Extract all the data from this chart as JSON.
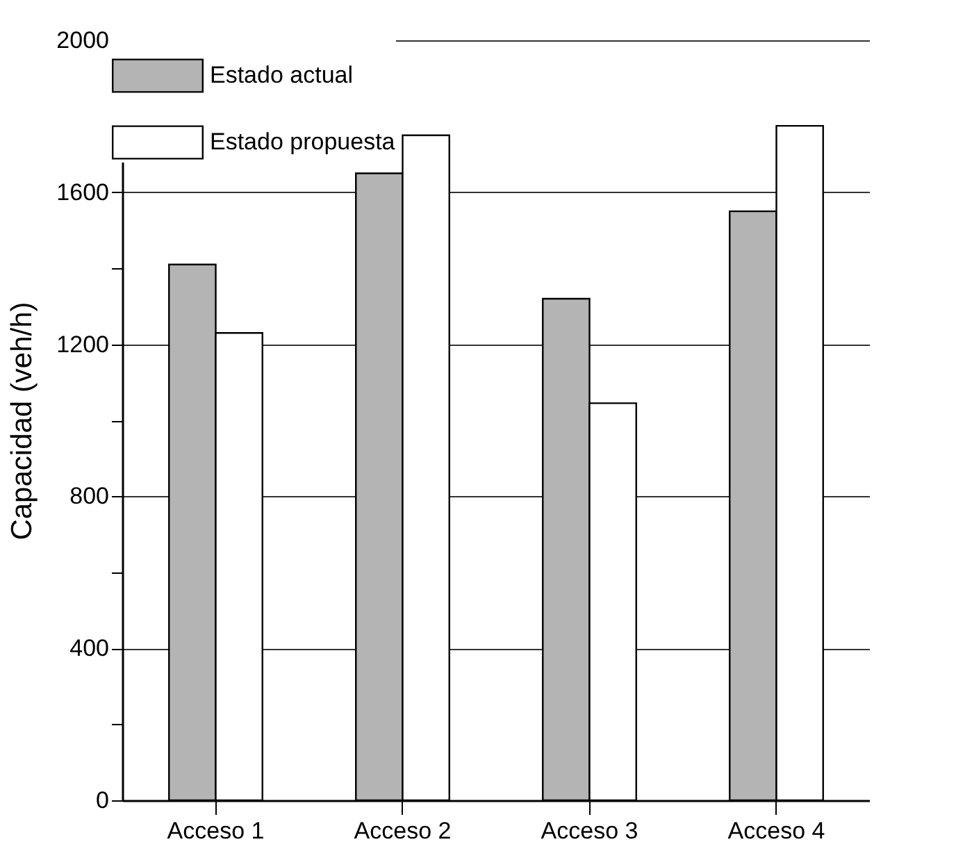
{
  "chart_data": {
    "type": "bar",
    "ylabel": "Capacidad (veh/h)",
    "categories": [
      "Acceso 1",
      "Acceso 2",
      "Acceso 3",
      "Acceso 4"
    ],
    "series": [
      {
        "name": "Estado actual",
        "color": "#b4b4b4",
        "values": [
          1410,
          1650,
          1320,
          1550
        ]
      },
      {
        "name": "Estado propuesta",
        "color": "#ffffff",
        "values": [
          1230,
          1750,
          1045,
          1775
        ]
      }
    ],
    "ylim": [
      0,
      2000
    ],
    "yticks": [
      0,
      {
        "value": 200,
        "label": null
      },
      400,
      {
        "value": 600,
        "label": null
      },
      800,
      {
        "value": 1000,
        "label": null
      },
      1200,
      {
        "value": 1400,
        "label": null
      },
      1600,
      {
        "value": 1800,
        "label": null
      },
      2000
    ],
    "grid": "y",
    "legend": "top left"
  }
}
